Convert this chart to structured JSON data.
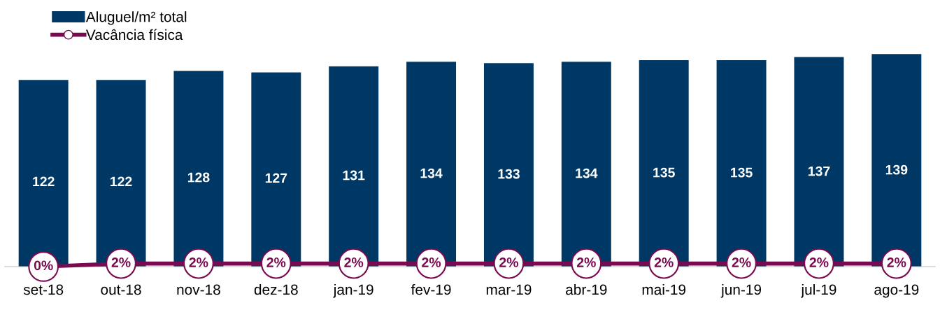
{
  "chart_data": {
    "type": "bar",
    "categories": [
      "set-18",
      "out-18",
      "nov-18",
      "dez-18",
      "jan-19",
      "fev-19",
      "mar-19",
      "abr-19",
      "mai-19",
      "jun-19",
      "jul-19",
      "ago-19"
    ],
    "series": [
      {
        "name": "Aluguel/m² total",
        "color": "#003865",
        "values": [
          122,
          122,
          128,
          127,
          131,
          134,
          133,
          134,
          135,
          135,
          137,
          139
        ],
        "value_labels": [
          "122",
          "122",
          "128",
          "127",
          "131",
          "134",
          "133",
          "134",
          "135",
          "135",
          "137",
          "139"
        ]
      },
      {
        "name": "Vacância física",
        "type": "line",
        "color": "#7a0a50",
        "values": [
          0,
          2,
          2,
          2,
          2,
          2,
          2,
          2,
          2,
          2,
          2,
          2
        ],
        "value_labels": [
          "0%",
          "2%",
          "2%",
          "2%",
          "2%",
          "2%",
          "2%",
          "2%",
          "2%",
          "2%",
          "2%",
          "2%"
        ]
      }
    ],
    "marker": "circle",
    "legend": "top left",
    "tick_labels": "x",
    "grid": false
  }
}
